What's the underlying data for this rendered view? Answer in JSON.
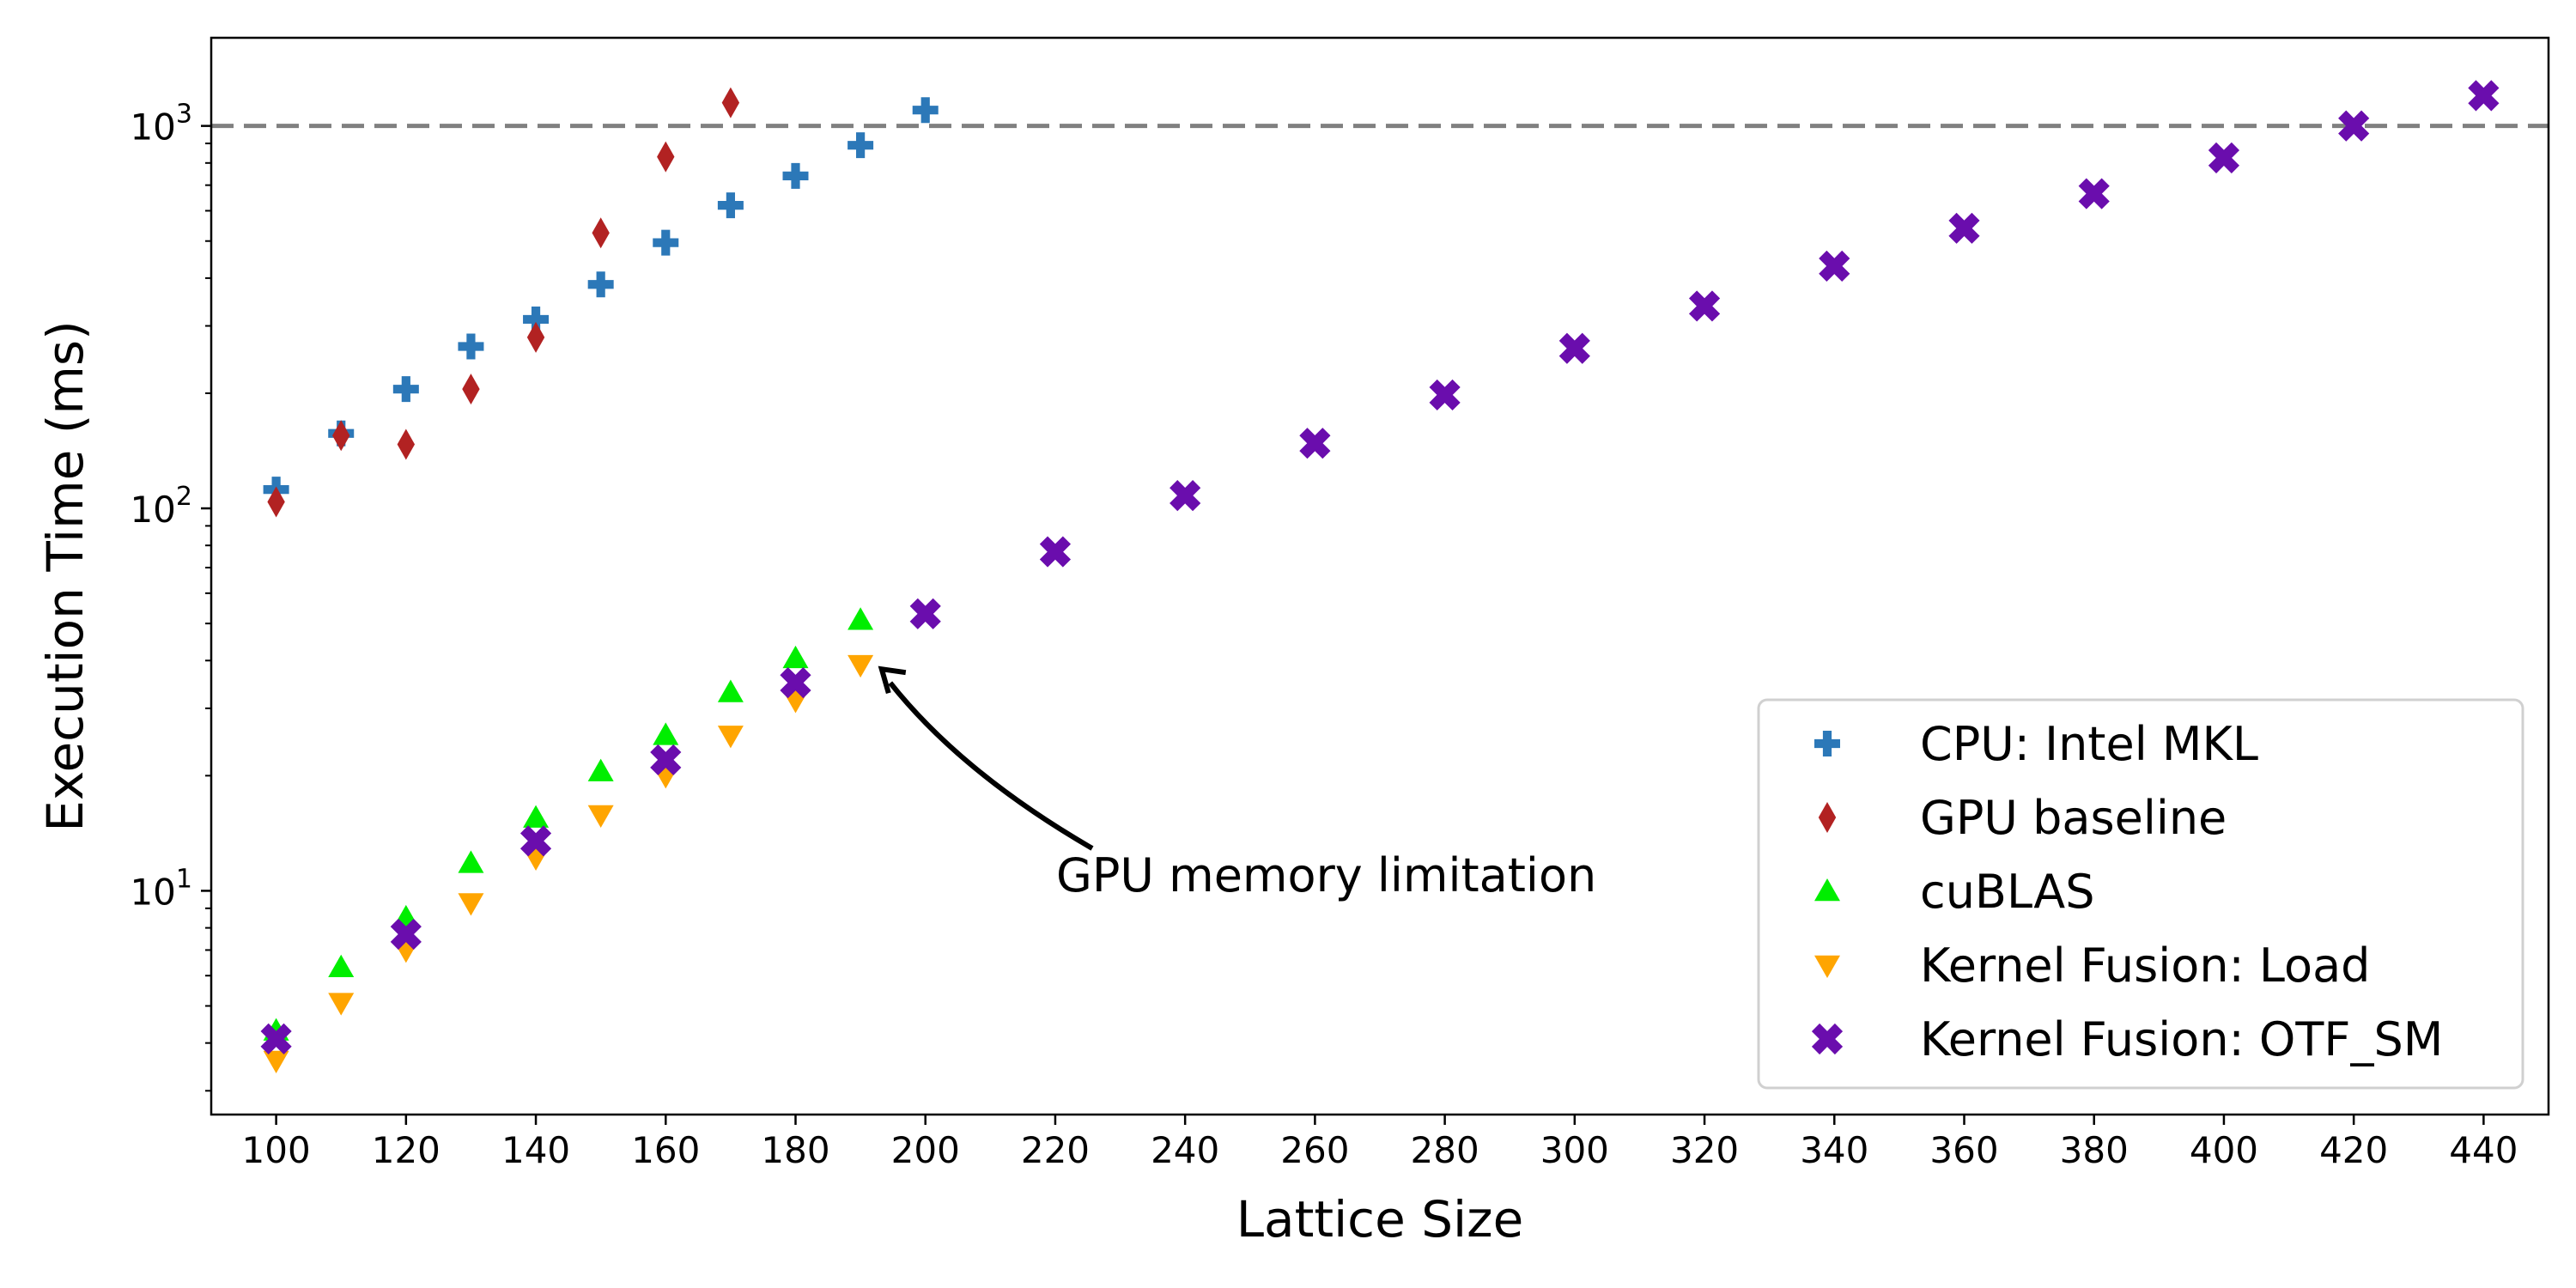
{
  "chart_data": {
    "type": "scatter",
    "xlabel": "Lattice Size",
    "ylabel": "Execution Time (ms)",
    "yscale": "log",
    "xlim": [
      90,
      450
    ],
    "ylim": [
      2.6,
      1700
    ],
    "xticks": [
      100,
      120,
      140,
      160,
      180,
      200,
      220,
      240,
      260,
      280,
      300,
      320,
      340,
      360,
      380,
      400,
      420,
      440
    ],
    "yticks": [
      {
        "value": 10,
        "label": "10",
        "exp": "1"
      },
      {
        "value": 100,
        "label": "10",
        "exp": "2"
      },
      {
        "value": 1000,
        "label": "10",
        "exp": "3"
      }
    ],
    "grid": false,
    "legend_position": "lower-right",
    "reference_line": {
      "y": 1000,
      "style": "dashed",
      "color": "#808080"
    },
    "annotation": {
      "text": "GPU memory limitation",
      "arrow_to": [
        193,
        38
      ],
      "text_at": [
        180,
        10.5
      ]
    },
    "series": [
      {
        "name": "CPU: Intel MKL",
        "marker": "plus",
        "color": "#2c78b8",
        "x": [
          100,
          110,
          120,
          130,
          140,
          150,
          160,
          170,
          180,
          190,
          200
        ],
        "y": [
          112,
          157,
          205,
          265,
          312,
          385,
          495,
          620,
          740,
          890,
          1100
        ]
      },
      {
        "name": "GPU baseline",
        "marker": "thin-diamond",
        "color": "#b22222",
        "x": [
          100,
          110,
          120,
          130,
          140,
          150,
          160,
          170
        ],
        "y": [
          104,
          155,
          147,
          205,
          280,
          525,
          830,
          1150
        ]
      },
      {
        "name": "cuBLAS",
        "marker": "triangle-up",
        "color": "#00ee00",
        "x": [
          100,
          110,
          120,
          130,
          140,
          150,
          160,
          170,
          180,
          190
        ],
        "y": [
          4.3,
          6.3,
          8.5,
          11.8,
          15.5,
          20.5,
          25.5,
          33,
          40.5,
          51
        ]
      },
      {
        "name": "Kernel Fusion: Load",
        "marker": "triangle-down",
        "color": "#ffa500",
        "x": [
          100,
          110,
          120,
          130,
          140,
          150,
          160,
          170,
          180,
          190
        ],
        "y": [
          3.6,
          5.1,
          7.0,
          9.3,
          12.2,
          15.8,
          20.0,
          25.5,
          31.5,
          39.0
        ]
      },
      {
        "name": "Kernel Fusion: OTF_SM",
        "marker": "x-filled",
        "color": "#6a0dad",
        "x": [
          100,
          120,
          140,
          160,
          180,
          200,
          220,
          240,
          260,
          280,
          300,
          320,
          340,
          360,
          380,
          400,
          420,
          440
        ],
        "y": [
          4.1,
          7.7,
          13.5,
          22.0,
          35.0,
          53.0,
          77.0,
          108,
          148,
          198,
          262,
          338,
          430,
          540,
          665,
          825,
          1000,
          1200
        ]
      }
    ]
  }
}
